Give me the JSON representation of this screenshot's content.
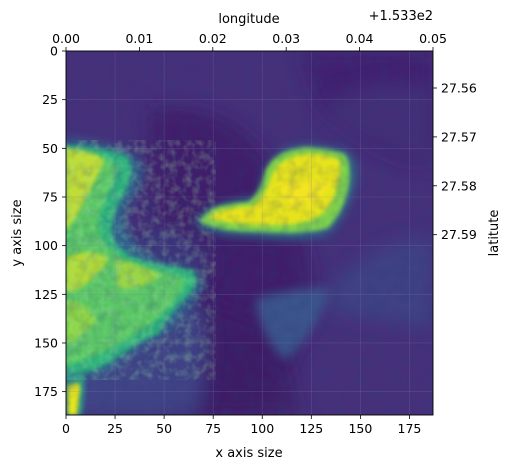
{
  "chart_data": {
    "type": "heatmap",
    "colormap": "viridis",
    "colors": {
      "low": "#440154",
      "mid_low": "#3b528b",
      "mid": "#21918c",
      "mid_high": "#5ec962",
      "high": "#fde725",
      "axis": "#000000",
      "grid": "#8a7ab0"
    },
    "grid": true,
    "image_size": [
      187,
      187
    ],
    "xlabel": "x axis size",
    "ylabel": "y axis size",
    "xlim": [
      0,
      187
    ],
    "ylim": [
      187,
      0
    ],
    "xticks": [
      0,
      25,
      50,
      75,
      100,
      125,
      150,
      175
    ],
    "xtick_labels": [
      "0",
      "25",
      "50",
      "75",
      "100",
      "125",
      "150",
      "175"
    ],
    "yticks": [
      0,
      25,
      50,
      75,
      100,
      125,
      150,
      175
    ],
    "ytick_labels": [
      "0",
      "25",
      "50",
      "75",
      "100",
      "125",
      "150",
      "175"
    ],
    "secondary_x": {
      "label": "longitude",
      "offset_text": "+1.533e2",
      "lim": [
        0.0,
        0.05
      ],
      "ticks": [
        0.0,
        0.01,
        0.02,
        0.03,
        0.04,
        0.05
      ],
      "tick_labels": [
        "0.00",
        "0.01",
        "0.02",
        "0.03",
        "0.04",
        "0.05"
      ]
    },
    "secondary_y": {
      "label": "latitute",
      "ticks": [
        27.56,
        27.57,
        27.58,
        27.59
      ],
      "tick_labels": [
        "27.56",
        "27.57",
        "27.58",
        "27.59"
      ]
    }
  }
}
